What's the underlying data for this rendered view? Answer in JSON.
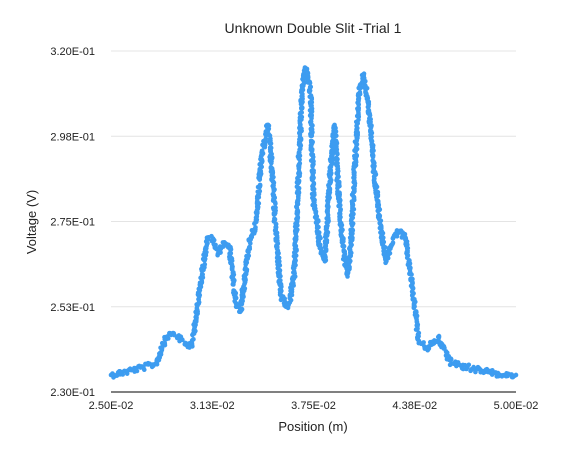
{
  "chart_data": {
    "type": "scatter",
    "title": "Unknown Double Slit -Trial 1",
    "xlabel": "Position (m)",
    "ylabel": "Voltage (V)",
    "xlim": [
      0.025,
      0.05
    ],
    "ylim": [
      0.23,
      0.32
    ],
    "x_ticks": [
      0.025,
      0.03125,
      0.0375,
      0.04375,
      0.05
    ],
    "x_tick_labels": [
      "2.50E-02",
      "3.13E-02",
      "3.75E-02",
      "4.38E-02",
      "5.00E-02"
    ],
    "y_ticks": [
      0.23,
      0.2525,
      0.275,
      0.2975,
      0.32
    ],
    "y_tick_labels": [
      "2.30E-01",
      "2.53E-01",
      "2.75E-01",
      "2.98E-01",
      "3.20E-01"
    ],
    "grid": true,
    "legend": "none",
    "series": [
      {
        "color": "#3d9cf0",
        "x": [
          0.025,
          0.026,
          0.027,
          0.0278,
          0.0284,
          0.0288,
          0.0292,
          0.0296,
          0.03,
          0.0304,
          0.0308,
          0.031,
          0.0313,
          0.0316,
          0.032,
          0.0323,
          0.0327,
          0.033,
          0.0334,
          0.0336,
          0.0338,
          0.034,
          0.0343,
          0.0347,
          0.035,
          0.0352,
          0.0355,
          0.0358,
          0.036,
          0.0363,
          0.0365,
          0.0368,
          0.037,
          0.0373,
          0.0375,
          0.0377,
          0.0379,
          0.0382,
          0.0385,
          0.0388,
          0.039,
          0.0393,
          0.0396,
          0.0398,
          0.04,
          0.0403,
          0.0406,
          0.0409,
          0.0412,
          0.0416,
          0.042,
          0.0424,
          0.0428,
          0.0432,
          0.0436,
          0.044,
          0.0444,
          0.0448,
          0.0452,
          0.046,
          0.047,
          0.048,
          0.049,
          0.05
        ],
        "y": [
          0.2345,
          0.2355,
          0.2365,
          0.2375,
          0.2445,
          0.2455,
          0.2445,
          0.2425,
          0.2425,
          0.2545,
          0.2665,
          0.2705,
          0.2705,
          0.2665,
          0.2695,
          0.2685,
          0.2535,
          0.2515,
          0.2655,
          0.2705,
          0.2725,
          0.2755,
          0.2925,
          0.3005,
          0.2855,
          0.2705,
          0.2555,
          0.2525,
          0.2535,
          0.2605,
          0.2795,
          0.3105,
          0.3155,
          0.3105,
          0.2805,
          0.2755,
          0.2685,
          0.2645,
          0.2855,
          0.3005,
          0.2855,
          0.2685,
          0.2605,
          0.2685,
          0.2855,
          0.3085,
          0.3135,
          0.3055,
          0.2905,
          0.2745,
          0.2645,
          0.2705,
          0.2725,
          0.2705,
          0.2575,
          0.2435,
          0.2415,
          0.2425,
          0.2445,
          0.2375,
          0.2365,
          0.2355,
          0.2345,
          0.2345
        ]
      }
    ]
  }
}
